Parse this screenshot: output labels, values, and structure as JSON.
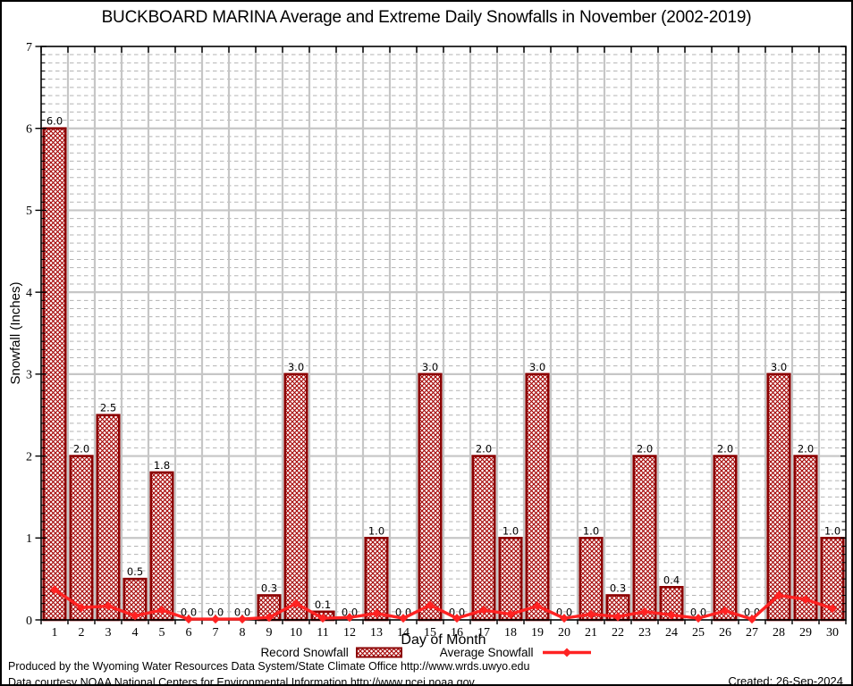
{
  "title": "BUCKBOARD MARINA Average and Extreme Daily Snowfalls in November (2002-2019)",
  "chart_data": {
    "type": "bar",
    "title": "BUCKBOARD MARINA Average and Extreme Daily Snowfalls in November (2002-2019)",
    "xlabel": "Day of Month",
    "ylabel": "Snowfall (Inches)",
    "categories": [
      1,
      2,
      3,
      4,
      5,
      6,
      7,
      8,
      9,
      10,
      11,
      12,
      13,
      14,
      15,
      16,
      17,
      18,
      19,
      20,
      21,
      22,
      23,
      24,
      25,
      26,
      27,
      28,
      29,
      30
    ],
    "series": [
      {
        "name": "Record Snowfall",
        "type": "bar",
        "values": [
          6.0,
          2.0,
          2.5,
          0.5,
          1.8,
          0.0,
          0.0,
          0.0,
          0.3,
          3.0,
          0.1,
          0.0,
          1.0,
          0.0,
          3.0,
          0.0,
          2.0,
          1.0,
          3.0,
          0.0,
          1.0,
          0.3,
          2.0,
          0.4,
          0.0,
          2.0,
          0.0,
          3.0,
          2.0,
          1.0
        ]
      },
      {
        "name": "Average Snowfall",
        "type": "line",
        "values": [
          0.37,
          0.15,
          0.17,
          0.05,
          0.12,
          0.01,
          0.01,
          0.01,
          0.03,
          0.2,
          0.02,
          0.03,
          0.08,
          0.02,
          0.18,
          0.02,
          0.12,
          0.07,
          0.17,
          0.02,
          0.07,
          0.04,
          0.1,
          0.06,
          0.02,
          0.11,
          0.01,
          0.3,
          0.25,
          0.14
        ]
      }
    ],
    "ylim": [
      0,
      7
    ],
    "y_major_step": 1,
    "y_minor_step": 0.1,
    "grid": true,
    "legend_position": "bottom",
    "bar_labels_decimals": 1,
    "colors": {
      "bar_border": "#8b0000",
      "bar_hatch": "#a40000",
      "line": "#ff2222",
      "grid_major": "#c6c6c6",
      "grid_minor": "#b3b3b3",
      "frame": "#000000"
    }
  },
  "legend": {
    "record_label": "Record Snowfall",
    "average_label": "Average Snowfall"
  },
  "footer": {
    "produced_by": "Produced by the Wyoming Water Resources Data System/State Climate Office http://www.wrds.uwyo.edu",
    "data_courtesy": "Data courtesy NOAA National Centers for Environmental Information http://www.ncei.noaa.gov",
    "created": "Created: 26-Sep-2024"
  }
}
